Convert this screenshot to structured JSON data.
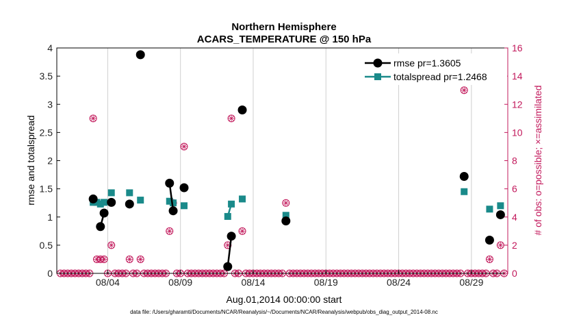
{
  "chart_data": {
    "type": "line",
    "title": "Northern Hemisphere",
    "subtitle": "ACARS_TEMPERATURE @ 150 hPa",
    "xlabel": "Aug.01,2014 00:00:00 start",
    "ylabel": "rmse and totalspread",
    "y2label": "# of obs: o=possible; ×=assimilated",
    "footer": "data file: /Users/gharamti/Documents/NCAR/Reanalysis/~/Documents/NCAR/Reanalysis/webpub/obs_diag_output_2014-08.nc",
    "xlim": [
      0,
      31
    ],
    "ylim": [
      0,
      4
    ],
    "y2lim": [
      0,
      16
    ],
    "xticks": [
      3.5,
      8.5,
      13.5,
      18.5,
      23.5,
      28.5
    ],
    "xtick_labels": [
      "08/04",
      "08/09",
      "08/14",
      "08/19",
      "08/24",
      "08/29"
    ],
    "yticks": [
      0,
      0.5,
      1,
      1.5,
      2,
      2.5,
      3,
      3.5,
      4
    ],
    "ytick_labels": [
      "0",
      "0.5",
      "1",
      "1.5",
      "2",
      "2.5",
      "3",
      "3.5",
      "4"
    ],
    "y2ticks": [
      0,
      2,
      4,
      6,
      8,
      10,
      12,
      14,
      16
    ],
    "y2tick_labels": [
      "0",
      "2",
      "4",
      "6",
      "8",
      "10",
      "12",
      "14",
      "16"
    ],
    "legend_position": "top-right",
    "series": [
      {
        "name": "rmse pr=1.3605",
        "color": "#000000",
        "marker": "circle",
        "points": [
          [
            [
              2.5,
              1.32
            ]
          ],
          [
            [
              3.0,
              0.83
            ],
            [
              3.25,
              1.07
            ]
          ],
          [
            [
              3.75,
              1.26
            ]
          ],
          [
            [
              5.0,
              1.23
            ]
          ],
          [
            [
              5.75,
              3.88
            ]
          ],
          [
            [
              7.75,
              1.6
            ],
            [
              8.0,
              1.11
            ]
          ],
          [
            [
              8.75,
              1.52
            ]
          ],
          [
            [
              11.75,
              0.12
            ],
            [
              12.0,
              0.66
            ]
          ],
          [
            [
              12.75,
              2.9
            ]
          ],
          [
            [
              15.75,
              0.93
            ]
          ],
          [
            [
              28.0,
              1.72
            ]
          ],
          [
            [
              29.75,
              0.59
            ]
          ],
          [
            [
              30.5,
              1.04
            ]
          ]
        ]
      },
      {
        "name": "totalspread pr=1.2468",
        "color": "#1a8a8a",
        "marker": "square",
        "points": [
          [
            [
              2.5,
              1.26
            ],
            [
              2.75,
              1.26
            ],
            [
              3.0,
              1.23
            ],
            [
              3.25,
              1.26
            ]
          ],
          [
            [
              3.75,
              1.43
            ]
          ],
          [
            [
              5.0,
              1.43
            ]
          ],
          [
            [
              5.75,
              1.3
            ]
          ],
          [
            [
              7.75,
              1.28
            ],
            [
              8.0,
              1.25
            ]
          ],
          [
            [
              8.75,
              1.2
            ]
          ],
          [
            [
              11.75,
              1.01
            ],
            [
              12.0,
              1.23
            ]
          ],
          [
            [
              12.75,
              1.32
            ]
          ],
          [
            [
              15.75,
              1.03
            ]
          ],
          [
            [
              28.0,
              1.45
            ]
          ],
          [
            [
              29.75,
              1.14
            ]
          ],
          [
            [
              30.5,
              1.2
            ]
          ]
        ]
      }
    ],
    "obs_color": "#c2185b",
    "obs_possible": [
      [
        0.25,
        0
      ],
      [
        0.5,
        0
      ],
      [
        0.75,
        0
      ],
      [
        1.0,
        0
      ],
      [
        1.25,
        0
      ],
      [
        1.5,
        0
      ],
      [
        1.75,
        0
      ],
      [
        2.0,
        0
      ],
      [
        2.25,
        0
      ],
      [
        2.5,
        11
      ],
      [
        2.75,
        1
      ],
      [
        3.0,
        1
      ],
      [
        3.25,
        1
      ],
      [
        3.5,
        0
      ],
      [
        3.75,
        2
      ],
      [
        4.0,
        0
      ],
      [
        4.25,
        0
      ],
      [
        4.5,
        0
      ],
      [
        4.75,
        0
      ],
      [
        5.0,
        1
      ],
      [
        5.25,
        0
      ],
      [
        5.5,
        0
      ],
      [
        5.75,
        1
      ],
      [
        6.0,
        0
      ],
      [
        6.25,
        0
      ],
      [
        6.5,
        0
      ],
      [
        6.75,
        0
      ],
      [
        7.0,
        0
      ],
      [
        7.25,
        0
      ],
      [
        7.5,
        0
      ],
      [
        7.75,
        3
      ],
      [
        8.0,
        5
      ],
      [
        8.25,
        0
      ],
      [
        8.5,
        0
      ],
      [
        8.75,
        9
      ],
      [
        9.0,
        0
      ],
      [
        9.25,
        0
      ],
      [
        9.5,
        0
      ],
      [
        9.75,
        0
      ],
      [
        10.0,
        0
      ],
      [
        10.25,
        0
      ],
      [
        10.5,
        0
      ],
      [
        10.75,
        0
      ],
      [
        11.0,
        0
      ],
      [
        11.25,
        0
      ],
      [
        11.5,
        0
      ],
      [
        11.75,
        2
      ],
      [
        12.0,
        11
      ],
      [
        12.25,
        0
      ],
      [
        12.5,
        0
      ],
      [
        12.75,
        3
      ],
      [
        13.0,
        0
      ],
      [
        13.25,
        0
      ],
      [
        13.5,
        0
      ],
      [
        13.75,
        0
      ],
      [
        14.0,
        0
      ],
      [
        14.25,
        0
      ],
      [
        14.5,
        0
      ],
      [
        14.75,
        0
      ],
      [
        15.0,
        0
      ],
      [
        15.25,
        0
      ],
      [
        15.5,
        0
      ],
      [
        15.75,
        5
      ],
      [
        16.0,
        0
      ],
      [
        16.25,
        0
      ],
      [
        16.5,
        0
      ],
      [
        16.75,
        0
      ],
      [
        17.0,
        0
      ],
      [
        17.25,
        0
      ],
      [
        17.5,
        0
      ],
      [
        17.75,
        0
      ],
      [
        18.0,
        0
      ],
      [
        18.25,
        0
      ],
      [
        18.5,
        0
      ],
      [
        18.75,
        0
      ],
      [
        19.0,
        0
      ],
      [
        19.25,
        0
      ],
      [
        19.5,
        0
      ],
      [
        19.75,
        0
      ],
      [
        20.0,
        0
      ],
      [
        20.25,
        0
      ],
      [
        20.5,
        0
      ],
      [
        20.75,
        0
      ],
      [
        21.0,
        0
      ],
      [
        21.25,
        0
      ],
      [
        21.5,
        0
      ],
      [
        21.75,
        0
      ],
      [
        22.0,
        0
      ],
      [
        22.25,
        0
      ],
      [
        22.5,
        0
      ],
      [
        22.75,
        0
      ],
      [
        23.0,
        0
      ],
      [
        23.25,
        0
      ],
      [
        23.5,
        0
      ],
      [
        23.75,
        0
      ],
      [
        24.0,
        0
      ],
      [
        24.25,
        0
      ],
      [
        24.5,
        0
      ],
      [
        24.75,
        0
      ],
      [
        25.0,
        0
      ],
      [
        25.25,
        0
      ],
      [
        25.5,
        0
      ],
      [
        25.75,
        0
      ],
      [
        26.0,
        0
      ],
      [
        26.25,
        0
      ],
      [
        26.5,
        0
      ],
      [
        26.75,
        0
      ],
      [
        27.0,
        0
      ],
      [
        27.25,
        0
      ],
      [
        27.5,
        0
      ],
      [
        27.75,
        0
      ],
      [
        28.0,
        13
      ],
      [
        28.25,
        0
      ],
      [
        28.5,
        0
      ],
      [
        28.75,
        0
      ],
      [
        29.0,
        0
      ],
      [
        29.25,
        0
      ],
      [
        29.5,
        0
      ],
      [
        29.75,
        1
      ],
      [
        30.0,
        0
      ],
      [
        30.25,
        0
      ],
      [
        30.5,
        2
      ],
      [
        30.75,
        0
      ]
    ]
  }
}
